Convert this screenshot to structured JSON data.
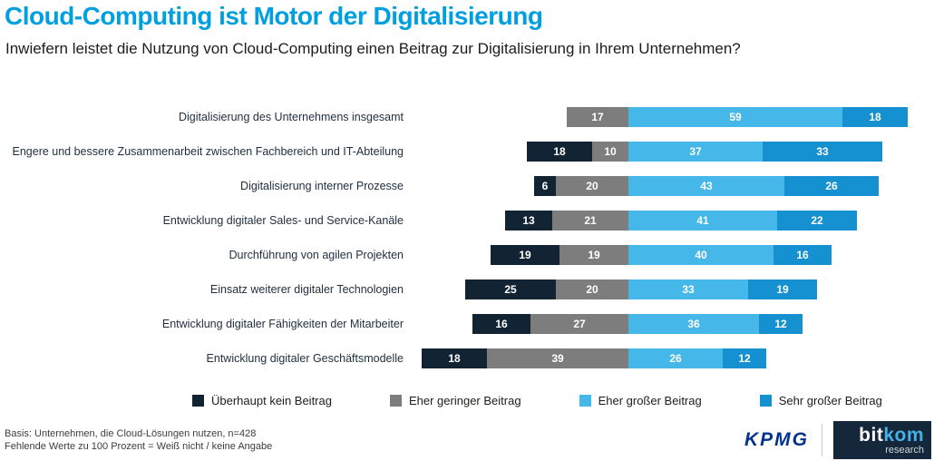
{
  "header": {
    "title": "Cloud-Computing ist Motor der Digitalisierung",
    "subtitle": "Inwiefern leistet die Nutzung von Cloud-Computing einen Beitrag zur Digitalisierung in Ihrem Unternehmen?"
  },
  "chart_data": {
    "type": "bar",
    "orientation": "horizontal",
    "diverging": true,
    "title": "Cloud-Computing ist Motor der Digitalisierung",
    "categories": [
      "Digitalisierung des Unternehmens insgesamt",
      "Engere und bessere Zusammenarbeit zwischen Fachbereich und IT-Abteilung",
      "Digitalisierung interner Prozesse",
      "Entwicklung digitaler Sales- und Service-Kanäle",
      "Durchführung von agilen Projekten",
      "Einsatz weiterer digitaler Technologien",
      "Entwicklung digitaler Fähigkeiten der Mitarbeiter",
      "Entwicklung digitaler Geschäftsmodelle"
    ],
    "series": [
      {
        "name": "Überhaupt kein Beitrag",
        "color": "#122433",
        "side": "negative",
        "values": [
          0,
          18,
          6,
          13,
          19,
          25,
          16,
          18
        ]
      },
      {
        "name": "Eher geringer Beitrag",
        "color": "#7d7d7d",
        "side": "negative",
        "values": [
          17,
          10,
          20,
          21,
          19,
          20,
          27,
          39
        ]
      },
      {
        "name": "Eher großer Beitrag",
        "color": "#45b7e8",
        "side": "positive",
        "values": [
          59,
          37,
          43,
          41,
          40,
          33,
          36,
          26
        ]
      },
      {
        "name": "Sehr großer Beitrag",
        "color": "#1590d0",
        "side": "positive",
        "values": [
          18,
          33,
          26,
          22,
          16,
          19,
          12,
          12
        ]
      }
    ],
    "unit": "percent",
    "value_labels": "inside, white, bold",
    "legend_position": "bottom",
    "alignment": "bars aligned on boundary between negative and positive segments",
    "notes": "Missing values to 100 percent = don't know / no answer"
  },
  "footer": {
    "line1": "Basis: Unternehmen, die Cloud-Lösungen nutzen, n=428",
    "line2": "Fehlende Werte zu 100 Prozent = Weiß nicht / keine Angabe"
  },
  "branding": {
    "kpmg": "KPMG",
    "bitkom_part1": "bit",
    "bitkom_part2": "kom",
    "bitkom_sub": "research"
  }
}
